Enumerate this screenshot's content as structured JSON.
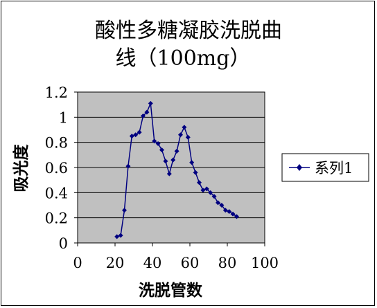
{
  "chart_data": {
    "type": "line",
    "title_lines": [
      "酸性多糖凝胶洗脱曲",
      "线（100mg）"
    ],
    "xlabel": "洗脱管数",
    "ylabel": "吸光度",
    "xlim": [
      0,
      100
    ],
    "ylim": [
      0,
      1.2
    ],
    "x_ticks": [
      0,
      20,
      40,
      60,
      80,
      100
    ],
    "x_tick_labels": [
      "0",
      "20",
      "40",
      "60",
      "80",
      "100"
    ],
    "y_ticks": [
      0,
      0.2,
      0.4,
      0.6,
      0.8,
      1,
      1.2
    ],
    "y_tick_labels": [
      "0",
      "0.2",
      "0.4",
      "0.6",
      "0.8",
      "1",
      "1.2"
    ],
    "grid": true,
    "plot_background": "#c0c0c0",
    "legend_position": "right",
    "series": [
      {
        "name": "系列1",
        "color": "#000080",
        "marker": "diamond",
        "x": [
          21,
          23,
          25,
          27,
          29,
          31,
          33,
          35,
          37,
          39,
          41,
          43,
          45,
          47,
          49,
          51,
          53,
          55,
          57,
          59,
          61,
          63,
          65,
          67,
          69,
          71,
          73,
          75,
          77,
          79,
          81,
          83,
          85
        ],
        "y": [
          0.05,
          0.06,
          0.26,
          0.61,
          0.85,
          0.86,
          0.88,
          1.01,
          1.04,
          1.11,
          0.81,
          0.79,
          0.74,
          0.65,
          0.55,
          0.66,
          0.73,
          0.86,
          0.92,
          0.84,
          0.64,
          0.56,
          0.48,
          0.42,
          0.43,
          0.4,
          0.37,
          0.32,
          0.3,
          0.26,
          0.25,
          0.23,
          0.21
        ]
      }
    ]
  }
}
